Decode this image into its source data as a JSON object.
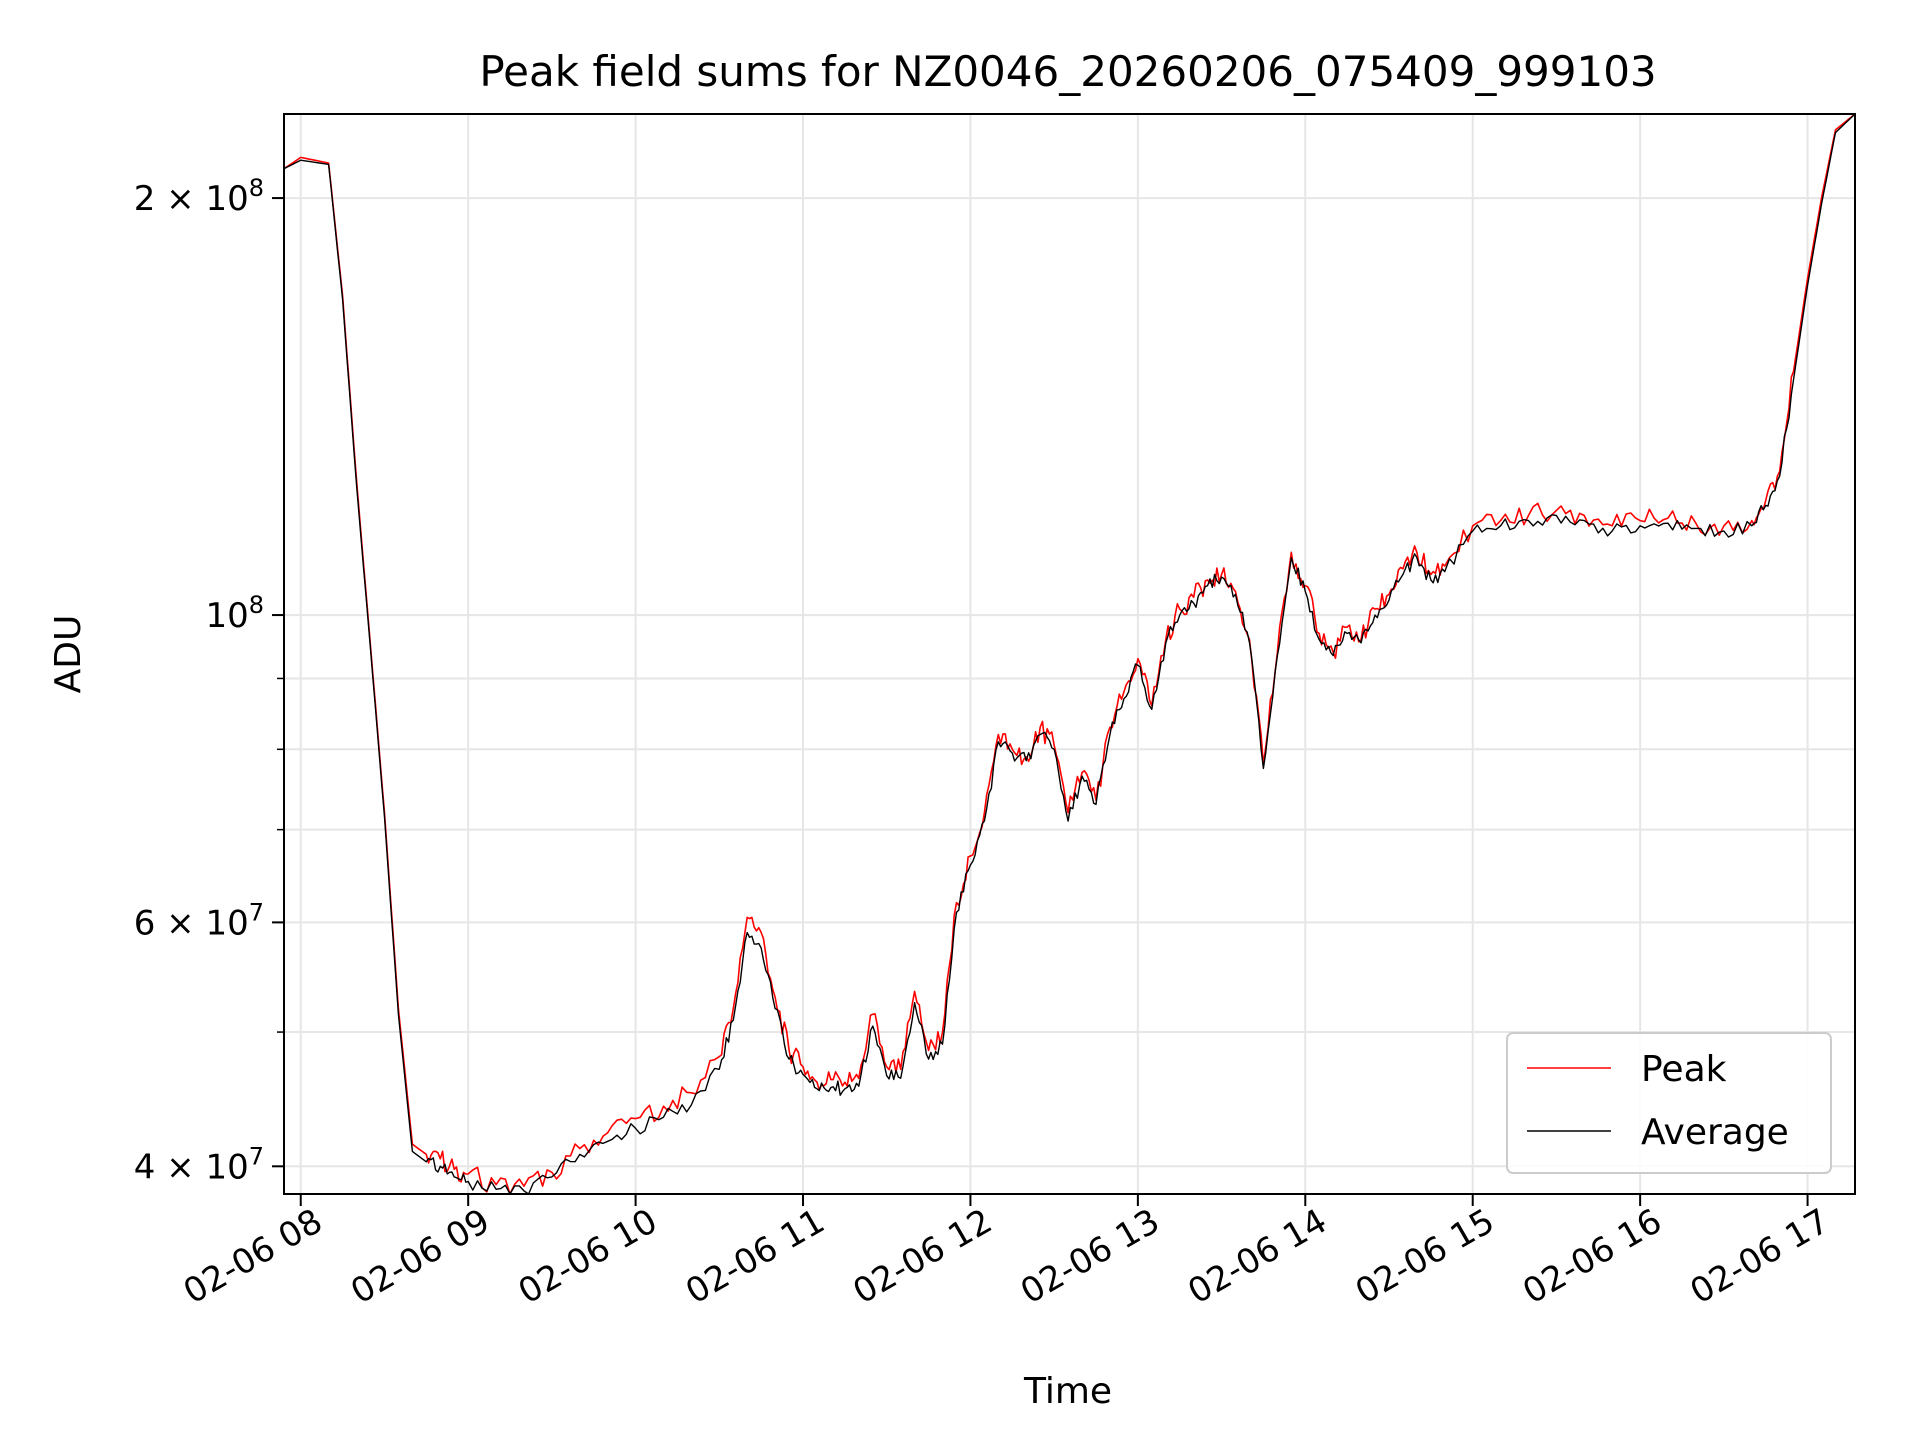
{
  "chart_data": {
    "type": "line",
    "title": "Peak field sums for NZ0046_20260206_075409_999103",
    "xlabel": "Time",
    "ylabel": "ADU",
    "x_ticks": [
      "02-06 08",
      "02-06 09",
      "02-06 10",
      "02-06 11",
      "02-06 12",
      "02-06 13",
      "02-06 14",
      "02-06 15",
      "02-06 16",
      "02-06 17"
    ],
    "y_scale": "log",
    "y_ticks": [
      {
        "value": 40000000,
        "mantissa": "4",
        "exponent": "7"
      },
      {
        "value": 60000000,
        "mantissa": "6",
        "exponent": "7"
      },
      {
        "value": 100000000,
        "mantissa": "",
        "exponent": "8"
      },
      {
        "value": 200000000,
        "mantissa": "2",
        "exponent": "8"
      }
    ],
    "x_range": [
      "2026-02-06 07:54",
      "2026-02-06 17:17"
    ],
    "ylim": [
      38200000,
      230000000
    ],
    "grid": true,
    "legend_position": "lower-right",
    "series": [
      {
        "name": "Peak",
        "color": "#ff0000",
        "x": [
          "2026-02-06 07:54",
          "2026-02-06 08:00",
          "2026-02-06 08:10",
          "2026-02-06 08:15",
          "2026-02-06 08:20",
          "2026-02-06 08:25",
          "2026-02-06 08:30",
          "2026-02-06 08:35",
          "2026-02-06 08:40",
          "2026-02-06 08:45",
          "2026-02-06 08:50",
          "2026-02-06 08:55",
          "2026-02-06 09:00",
          "2026-02-06 09:10",
          "2026-02-06 09:20",
          "2026-02-06 09:30",
          "2026-02-06 09:40",
          "2026-02-06 09:50",
          "2026-02-06 10:00",
          "2026-02-06 10:10",
          "2026-02-06 10:20",
          "2026-02-06 10:30",
          "2026-02-06 10:35",
          "2026-02-06 10:40",
          "2026-02-06 10:45",
          "2026-02-06 10:50",
          "2026-02-06 10:55",
          "2026-02-06 11:00",
          "2026-02-06 11:05",
          "2026-02-06 11:10",
          "2026-02-06 11:15",
          "2026-02-06 11:20",
          "2026-02-06 11:25",
          "2026-02-06 11:30",
          "2026-02-06 11:35",
          "2026-02-06 11:40",
          "2026-02-06 11:45",
          "2026-02-06 11:50",
          "2026-02-06 11:55",
          "2026-02-06 12:00",
          "2026-02-06 12:05",
          "2026-02-06 12:10",
          "2026-02-06 12:15",
          "2026-02-06 12:20",
          "2026-02-06 12:25",
          "2026-02-06 12:30",
          "2026-02-06 12:35",
          "2026-02-06 12:40",
          "2026-02-06 12:45",
          "2026-02-06 12:50",
          "2026-02-06 12:55",
          "2026-02-06 13:00",
          "2026-02-06 13:05",
          "2026-02-06 13:10",
          "2026-02-06 13:15",
          "2026-02-06 13:20",
          "2026-02-06 13:25",
          "2026-02-06 13:30",
          "2026-02-06 13:35",
          "2026-02-06 13:40",
          "2026-02-06 13:45",
          "2026-02-06 13:50",
          "2026-02-06 13:55",
          "2026-02-06 14:00",
          "2026-02-06 14:05",
          "2026-02-06 14:10",
          "2026-02-06 14:15",
          "2026-02-06 14:20",
          "2026-02-06 14:25",
          "2026-02-06 14:30",
          "2026-02-06 14:35",
          "2026-02-06 14:40",
          "2026-02-06 14:45",
          "2026-02-06 14:50",
          "2026-02-06 15:00",
          "2026-02-06 15:10",
          "2026-02-06 15:20",
          "2026-02-06 15:30",
          "2026-02-06 15:40",
          "2026-02-06 15:50",
          "2026-02-06 16:00",
          "2026-02-06 16:10",
          "2026-02-06 16:20",
          "2026-02-06 16:30",
          "2026-02-06 16:40",
          "2026-02-06 16:45",
          "2026-02-06 16:50",
          "2026-02-06 16:55",
          "2026-02-06 17:00",
          "2026-02-06 17:05",
          "2026-02-06 17:10",
          "2026-02-06 17:17"
        ],
        "values": [
          210000000,
          214000000,
          212000000,
          170000000,
          125000000,
          95000000,
          72000000,
          52000000,
          41500000,
          40800000,
          40500000,
          39800000,
          39500000,
          38800000,
          38700000,
          39600000,
          41200000,
          42300000,
          43300000,
          44200000,
          45200000,
          48000000,
          52000000,
          60500000,
          59000000,
          53000000,
          48500000,
          47200000,
          46000000,
          46200000,
          46000000,
          46300000,
          51500000,
          47200000,
          47000000,
          53500000,
          48500000,
          50000000,
          62000000,
          67000000,
          72000000,
          82000000,
          80000000,
          79000000,
          83000000,
          80500000,
          72000000,
          77000000,
          73500000,
          83000000,
          88000000,
          93000000,
          86000000,
          96000000,
          101000000,
          103000000,
          106000000,
          107000000,
          104000000,
          96000000,
          78000000,
          94000000,
          111000000,
          105000000,
          97000000,
          94000000,
          98000000,
          96000000,
          101000000,
          103500000,
          108000000,
          111000000,
          107000000,
          108500000,
          116000000,
          117000000,
          118000000,
          119000000,
          118000000,
          116000000,
          117000000,
          117500000,
          116500000,
          116000000,
          117000000,
          121000000,
          127000000,
          150000000,
          175000000,
          200000000,
          224000000,
          230000000
        ]
      },
      {
        "name": "Average",
        "color": "#000000",
        "x": [
          "2026-02-06 07:54",
          "2026-02-06 08:00",
          "2026-02-06 08:10",
          "2026-02-06 08:15",
          "2026-02-06 08:20",
          "2026-02-06 08:25",
          "2026-02-06 08:30",
          "2026-02-06 08:35",
          "2026-02-06 08:40",
          "2026-02-06 08:45",
          "2026-02-06 08:50",
          "2026-02-06 08:55",
          "2026-02-06 09:00",
          "2026-02-06 09:10",
          "2026-02-06 09:20",
          "2026-02-06 09:30",
          "2026-02-06 09:40",
          "2026-02-06 09:50",
          "2026-02-06 10:00",
          "2026-02-06 10:10",
          "2026-02-06 10:20",
          "2026-02-06 10:30",
          "2026-02-06 10:35",
          "2026-02-06 10:40",
          "2026-02-06 10:45",
          "2026-02-06 10:50",
          "2026-02-06 10:55",
          "2026-02-06 11:00",
          "2026-02-06 11:05",
          "2026-02-06 11:10",
          "2026-02-06 11:15",
          "2026-02-06 11:20",
          "2026-02-06 11:25",
          "2026-02-06 11:30",
          "2026-02-06 11:35",
          "2026-02-06 11:40",
          "2026-02-06 11:45",
          "2026-02-06 11:50",
          "2026-02-06 11:55",
          "2026-02-06 12:00",
          "2026-02-06 12:05",
          "2026-02-06 12:10",
          "2026-02-06 12:15",
          "2026-02-06 12:20",
          "2026-02-06 12:25",
          "2026-02-06 12:30",
          "2026-02-06 12:35",
          "2026-02-06 12:40",
          "2026-02-06 12:45",
          "2026-02-06 12:50",
          "2026-02-06 12:55",
          "2026-02-06 13:00",
          "2026-02-06 13:05",
          "2026-02-06 13:10",
          "2026-02-06 13:15",
          "2026-02-06 13:20",
          "2026-02-06 13:25",
          "2026-02-06 13:30",
          "2026-02-06 13:35",
          "2026-02-06 13:40",
          "2026-02-06 13:45",
          "2026-02-06 13:50",
          "2026-02-06 13:55",
          "2026-02-06 14:00",
          "2026-02-06 14:05",
          "2026-02-06 14:10",
          "2026-02-06 14:15",
          "2026-02-06 14:20",
          "2026-02-06 14:25",
          "2026-02-06 14:30",
          "2026-02-06 14:35",
          "2026-02-06 14:40",
          "2026-02-06 14:45",
          "2026-02-06 14:50",
          "2026-02-06 15:00",
          "2026-02-06 15:10",
          "2026-02-06 15:20",
          "2026-02-06 15:30",
          "2026-02-06 15:40",
          "2026-02-06 15:50",
          "2026-02-06 16:00",
          "2026-02-06 16:10",
          "2026-02-06 16:20",
          "2026-02-06 16:30",
          "2026-02-06 16:40",
          "2026-02-06 16:45",
          "2026-02-06 16:50",
          "2026-02-06 16:55",
          "2026-02-06 17:00",
          "2026-02-06 17:05",
          "2026-02-06 17:10",
          "2026-02-06 17:17"
        ],
        "values": [
          210000000,
          213000000,
          211500000,
          169000000,
          124000000,
          94500000,
          71500000,
          51500000,
          41000000,
          40300000,
          40000000,
          39300000,
          39000000,
          38500000,
          38400000,
          39300000,
          40800000,
          41700000,
          42600000,
          43400000,
          44300000,
          47000000,
          51000000,
          59000000,
          57500000,
          52000000,
          47800000,
          46600000,
          45500000,
          45600000,
          45500000,
          45700000,
          50500000,
          46500000,
          46300000,
          52500000,
          47800000,
          49000000,
          61000000,
          66000000,
          71000000,
          81000000,
          79500000,
          78500000,
          82000000,
          80000000,
          71000000,
          76500000,
          73000000,
          82000000,
          87000000,
          92000000,
          85500000,
          95500000,
          100000000,
          102000000,
          105000000,
          106500000,
          103500000,
          95500000,
          77500000,
          93500000,
          110000000,
          104000000,
          96000000,
          93500000,
          97000000,
          95500000,
          100000000,
          102500000,
          107000000,
          110000000,
          106000000,
          107500000,
          115000000,
          116000000,
          117000000,
          118000000,
          117000000,
          115000000,
          116000000,
          116500000,
          115500000,
          115000000,
          116000000,
          120000000,
          126000000,
          148000000,
          173000000,
          198000000,
          223000000,
          230000000
        ]
      }
    ]
  }
}
